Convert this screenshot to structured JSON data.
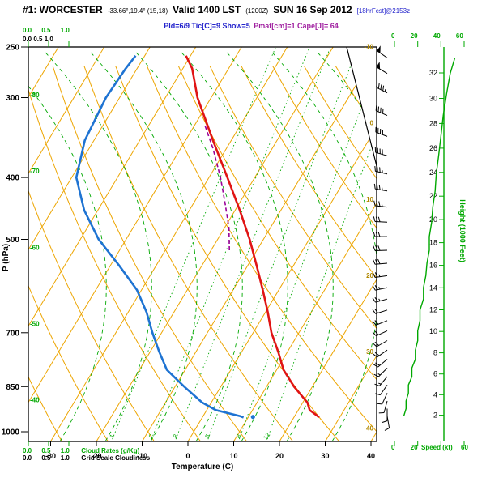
{
  "header": {
    "station": "#1: WORCESTER",
    "coords": "-33.66°,19.4° (15,18)",
    "valid": "Valid 1400 LST",
    "zulu": "(1200Z)",
    "date": "SUN 16 Sep 2012",
    "fcst": "[18hrFcst]@2153z",
    "params_blue": "Pld=6/9 Tic[C]=9 Show=5",
    "params_purple": "Pmat[cm]=1 Cape[J]= 64"
  },
  "axes": {
    "pressure_title": "P (hPa)",
    "temperature_title": "Temperature (C)",
    "height_title": "Height (1000 Feet)",
    "speed_title": "Speed (kt)"
  },
  "scales": {
    "cloud_top_green": "0.0 0.5 1.0",
    "cloud_top_black": "0.0 0.5 1.0",
    "cloud_bottom_green": "0.0 0.5 1.0",
    "cloud_bottom_black": "0.0 0.5 1.0",
    "cloud_rates_label": "Cloud Rates (g/Kg)",
    "grid_cloudiness_label": "Grid Scale Cloudiness",
    "speed_scale_top": "0 20 40 60",
    "speed_scale_bottom": "0 20",
    "speed_scale_60": "60"
  },
  "colors": {
    "isotherm": "#eda500",
    "adiabat": "#eda500",
    "moist": "#00a800",
    "mixing": "#00a800",
    "temperature": "#e01414",
    "dewpoint": "#1e73d2",
    "parcel": "#990099",
    "height_axis": "#00a800",
    "right_labels": "#b08800"
  },
  "chart_data": {
    "type": "skewt",
    "title": "#1: WORCESTER Valid 1400 LST (1200Z) SUN 16 Sep 2012",
    "pressure_ticks": [
      250,
      300,
      400,
      500,
      700,
      850,
      1000
    ],
    "temperature_ticks": [
      -30,
      -20,
      -10,
      0,
      10,
      20,
      30,
      40
    ],
    "height_ticks_kft": [
      2,
      4,
      6,
      8,
      10,
      12,
      14,
      16,
      18,
      20,
      22,
      24,
      26,
      28,
      30,
      32
    ],
    "isotherm_labels_left": [
      -40,
      -50,
      -60,
      -70,
      -80
    ],
    "isotherm_labels_right": [
      -10,
      0,
      10,
      20,
      30,
      40
    ],
    "mixing_ratio_labels_gkg": [
      1,
      2,
      3,
      5,
      8,
      12
    ],
    "pressure_range_hpa": [
      1035,
      250
    ],
    "temperature_axis_range_c": [
      -30,
      40
    ],
    "wind_speed_scale_kt": [
      0,
      20,
      40,
      60
    ],
    "sounding": {
      "pressure_hpa": [
        950,
        945,
        925,
        900,
        850,
        800,
        750,
        700,
        650,
        600,
        550,
        500,
        450,
        400,
        350,
        300,
        270,
        258
      ],
      "temperature_c": [
        25.5,
        25,
        22.5,
        21,
        16,
        11.5,
        8,
        4,
        0.5,
        -3.5,
        -8,
        -13,
        -19,
        -26,
        -34,
        -43,
        -48,
        -51
      ],
      "dewpoint_c": [
        9,
        8,
        2,
        -2,
        -8,
        -14,
        -18,
        -22,
        -26,
        -31,
        -38,
        -46,
        -53,
        -59,
        -62,
        -63,
        -62.5,
        -62
      ]
    },
    "surface_dewpoint_dot": {
      "pressure_hpa": 948,
      "value_c": 11
    },
    "parcel_path": {
      "pressure_hpa": [
        520,
        480,
        440,
        400,
        360,
        330
      ],
      "temperature_c": [
        -16,
        -19,
        -23,
        -27.5,
        -33,
        -38
      ]
    },
    "wind_barbs": [
      {
        "p": 945,
        "dir": 170,
        "spd": 8
      },
      {
        "p": 920,
        "dir": 180,
        "spd": 10
      },
      {
        "p": 895,
        "dir": 195,
        "spd": 10
      },
      {
        "p": 870,
        "dir": 205,
        "spd": 12
      },
      {
        "p": 845,
        "dir": 215,
        "spd": 12
      },
      {
        "p": 820,
        "dir": 220,
        "spd": 15
      },
      {
        "p": 795,
        "dir": 225,
        "spd": 15
      },
      {
        "p": 770,
        "dir": 230,
        "spd": 18
      },
      {
        "p": 745,
        "dir": 235,
        "spd": 18
      },
      {
        "p": 720,
        "dir": 240,
        "spd": 20
      },
      {
        "p": 695,
        "dir": 245,
        "spd": 20
      },
      {
        "p": 670,
        "dir": 248,
        "spd": 22
      },
      {
        "p": 645,
        "dir": 252,
        "spd": 22
      },
      {
        "p": 620,
        "dir": 255,
        "spd": 25
      },
      {
        "p": 595,
        "dir": 258,
        "spd": 25
      },
      {
        "p": 570,
        "dir": 262,
        "spd": 27
      },
      {
        "p": 545,
        "dir": 265,
        "spd": 28
      },
      {
        "p": 520,
        "dir": 268,
        "spd": 30
      },
      {
        "p": 495,
        "dir": 270,
        "spd": 30
      },
      {
        "p": 470,
        "dir": 273,
        "spd": 32
      },
      {
        "p": 445,
        "dir": 276,
        "spd": 33
      },
      {
        "p": 420,
        "dir": 280,
        "spd": 35
      },
      {
        "p": 395,
        "dir": 283,
        "spd": 36
      },
      {
        "p": 370,
        "dir": 286,
        "spd": 38
      },
      {
        "p": 345,
        "dir": 290,
        "spd": 40
      },
      {
        "p": 320,
        "dir": 293,
        "spd": 42
      },
      {
        "p": 295,
        "dir": 297,
        "spd": 45
      },
      {
        "p": 275,
        "dir": 301,
        "spd": 48
      },
      {
        "p": 260,
        "dir": 305,
        "spd": 52
      }
    ]
  }
}
